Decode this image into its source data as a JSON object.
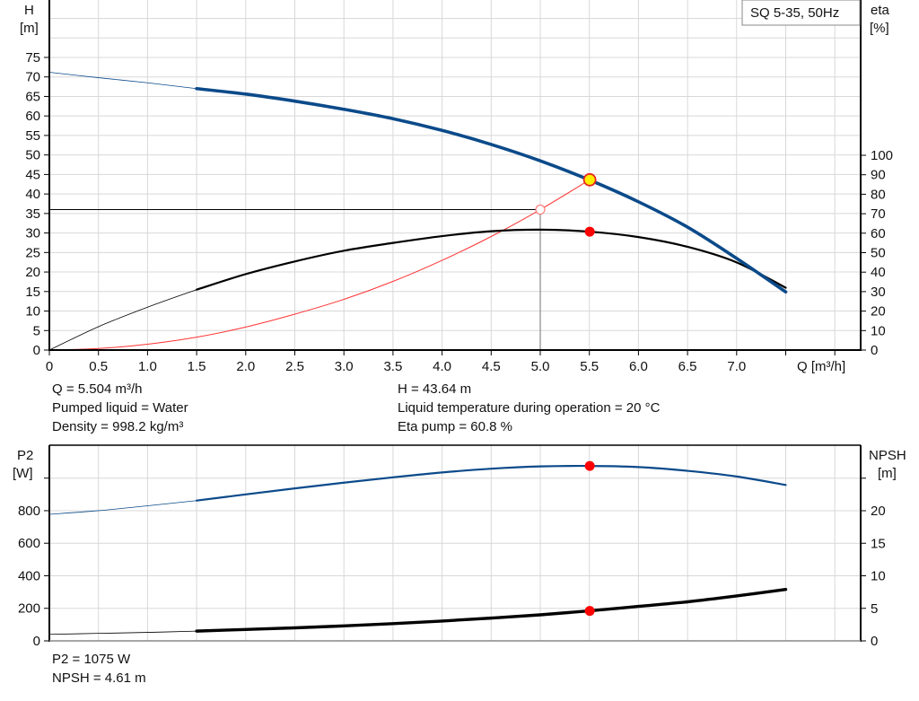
{
  "chart_data": [
    {
      "type": "line",
      "title": "SQ 5-35, 50Hz",
      "xlabel": "Q [m³/h]",
      "ylabel": "H [m]",
      "y2label": "eta [%]",
      "xlim": [
        0,
        8.2
      ],
      "ylim": [
        0,
        75
      ],
      "y2lim": [
        0,
        100
      ],
      "x_ticks": [
        "0",
        "0.5",
        "1.0",
        "1.5",
        "2.0",
        "2.5",
        "3.0",
        "3.5",
        "4.0",
        "4.5",
        "5.0",
        "5.5",
        "6.0",
        "6.5",
        "7.0"
      ],
      "y_ticks": [
        "0",
        "5",
        "10",
        "15",
        "20",
        "25",
        "30",
        "35",
        "40",
        "45",
        "50",
        "55",
        "60",
        "65",
        "70",
        "75"
      ],
      "y2_ticks": [
        "0",
        "10",
        "20",
        "30",
        "40",
        "50",
        "60",
        "70",
        "80",
        "90",
        "100"
      ],
      "grid": true,
      "series": [
        {
          "name": "H (head)",
          "axis": "left",
          "color": "#0b4a8a",
          "x": [
            0,
            0.5,
            1.0,
            1.5,
            2.0,
            2.5,
            3.0,
            3.5,
            4.0,
            4.5,
            5.0,
            5.5,
            6.0,
            6.5,
            7.0,
            7.5
          ],
          "y": [
            71.2,
            69.8,
            68.5,
            67.0,
            65.6,
            63.8,
            61.7,
            59.3,
            56.3,
            52.7,
            48.5,
            43.6,
            38.0,
            31.5,
            23.5,
            14.9
          ]
        },
        {
          "name": "eta (pump efficiency)",
          "axis": "right",
          "color": "#000000",
          "x": [
            0,
            0.5,
            1.0,
            1.5,
            2.0,
            2.5,
            3.0,
            3.5,
            4.0,
            4.5,
            5.0,
            5.5,
            6.0,
            6.5,
            7.0,
            7.5
          ],
          "y": [
            0,
            12,
            22,
            31,
            39,
            45.5,
            51,
            55,
            58.5,
            61,
            61.8,
            60.8,
            58,
            53,
            45,
            32
          ]
        },
        {
          "name": "System curve",
          "axis": "left",
          "color": "#ff3333",
          "x": [
            0,
            0.5,
            1.0,
            1.5,
            2.0,
            2.5,
            3.0,
            3.5,
            4.0,
            4.5,
            5.0,
            5.5
          ],
          "y": [
            0,
            0.4,
            1.5,
            3.3,
            5.9,
            9.2,
            13.0,
            17.6,
            23.0,
            29.1,
            36.0,
            43.6
          ]
        }
      ],
      "annotations": [
        {
          "type": "duty-point",
          "x": 5.504,
          "y": 43.64,
          "style": "yellow-circle-red-border"
        },
        {
          "type": "eta-point",
          "x": 5.504,
          "y2": 60.8,
          "style": "red-dot"
        },
        {
          "type": "reference-point",
          "x": 5.0,
          "y": 36.0,
          "style": "hollow-red-circle"
        },
        {
          "type": "reference-line-h",
          "y": 36.0,
          "x_from": 0,
          "x_to": 5.0
        },
        {
          "type": "reference-line-v",
          "x": 5.0,
          "y_from": 0,
          "y_to": 36.0
        }
      ]
    },
    {
      "type": "line",
      "xlabel": "Q [m³/h]",
      "ylabel": "P2 [W]",
      "y2label": "NPSH [m]",
      "xlim": [
        0,
        8.2
      ],
      "ylim": [
        0,
        1200
      ],
      "y2lim": [
        0,
        30
      ],
      "y_ticks": [
        "0",
        "200",
        "400",
        "600",
        "800"
      ],
      "y2_ticks": [
        "0",
        "5",
        "10",
        "15",
        "20"
      ],
      "grid": true,
      "series": [
        {
          "name": "P2 (power)",
          "axis": "left",
          "color": "#0b4a8a",
          "x": [
            0,
            0.5,
            1.0,
            1.5,
            2.0,
            2.5,
            3.0,
            3.5,
            4.0,
            4.5,
            5.0,
            5.5,
            6.0,
            6.5,
            7.0,
            7.5
          ],
          "y": [
            778,
            800,
            830,
            862,
            900,
            937,
            972,
            1005,
            1035,
            1058,
            1072,
            1075,
            1068,
            1045,
            1010,
            958
          ]
        },
        {
          "name": "NPSH",
          "axis": "right",
          "color": "#000000",
          "x": [
            0,
            0.5,
            1.0,
            1.5,
            2.0,
            2.5,
            3.0,
            3.5,
            4.0,
            4.5,
            5.0,
            5.5,
            6.0,
            6.5,
            7.0,
            7.5
          ],
          "y": [
            1.0,
            1.15,
            1.3,
            1.5,
            1.75,
            2.0,
            2.3,
            2.65,
            3.05,
            3.5,
            4.0,
            4.61,
            5.3,
            6.0,
            6.9,
            7.9
          ]
        }
      ],
      "annotations": [
        {
          "type": "p2-point",
          "x": 5.504,
          "y": 1075,
          "style": "red-dot"
        },
        {
          "type": "npsh-point",
          "x": 5.504,
          "y2": 4.61,
          "style": "red-dot"
        }
      ]
    }
  ],
  "top_chart": {
    "title": "SQ 5-35, 50Hz",
    "y_axis_name": "H",
    "y_axis_unit": "[m]",
    "y2_axis_name": "eta",
    "y2_axis_unit": "[%]",
    "x_axis_label": "Q [m³/h]"
  },
  "bottom_chart": {
    "y_axis_name": "P2",
    "y_axis_unit": "[W]",
    "y2_axis_name": "NPSH",
    "y2_axis_unit": "[m]"
  },
  "info_top": {
    "left": [
      "Q = 5.504 m³/h",
      "Pumped liquid = Water",
      "Density = 998.2 kg/m³"
    ],
    "right": [
      "H = 43.64 m",
      "Liquid temperature during operation = 20 °C",
      "Eta pump = 60.8 %"
    ]
  },
  "info_bottom": {
    "left": [
      "P2 = 1075 W",
      "NPSH = 4.61 m"
    ]
  },
  "colors": {
    "head_curve": "#0b4a8a",
    "eta_curve": "#000000",
    "system_curve": "#ff3333",
    "duty_point_fill": "#ffee00",
    "marker_red": "#ff0000",
    "grid": "#d8d8d8"
  }
}
